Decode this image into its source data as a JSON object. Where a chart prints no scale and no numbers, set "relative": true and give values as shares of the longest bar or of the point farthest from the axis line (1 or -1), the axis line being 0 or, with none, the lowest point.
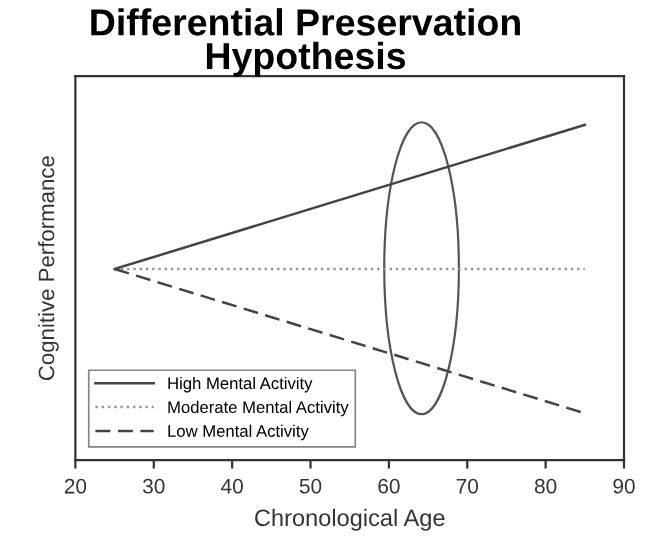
{
  "chart_data": {
    "type": "line",
    "title": "Differential Preservation Hypothesis",
    "xlabel": "Chronological Age",
    "ylabel": "Cognitive Performance",
    "x": [
      25,
      85
    ],
    "relative": true,
    "xlim": [
      20,
      90
    ],
    "xticks": [
      20,
      30,
      40,
      50,
      60,
      70,
      80,
      90
    ],
    "tick_labels": "x",
    "grid": false,
    "legend": "bottom left",
    "marker": "none",
    "series": [
      {
        "name": "High Mental Activity",
        "color": "#444444",
        "line_style": "solid",
        "values": [
          0.57,
          1
        ]
      },
      {
        "name": "Moderate Mental Activity",
        "color": "#999999",
        "line_style": "dotted",
        "values": [
          0.57,
          0.57
        ]
      },
      {
        "name": "Low Mental Activity",
        "color": "#444444",
        "line_style": "dashed",
        "values": [
          0.57,
          0.14
        ]
      }
    ]
  }
}
